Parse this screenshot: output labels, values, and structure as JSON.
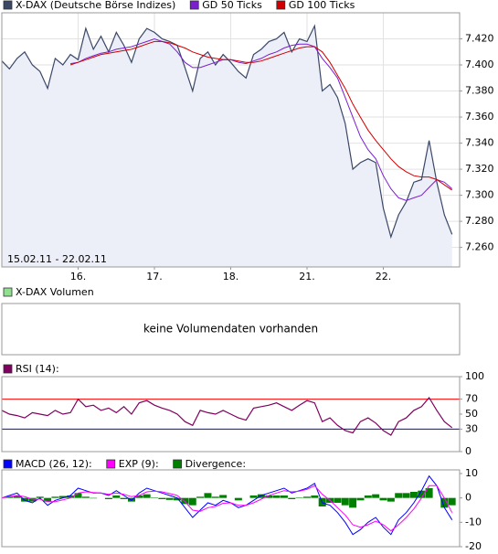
{
  "chart_data": [
    {
      "type": "line",
      "series": [
        {
          "name": "X-DAX (Deutsche Börse Indizes)",
          "color": "#3a4766",
          "fill": "#eceef8",
          "values": [
            7.403,
            7.397,
            7.405,
            7.41,
            7.4,
            7.395,
            7.382,
            7.405,
            7.4,
            7.408,
            7.404,
            7.428,
            7.412,
            7.422,
            7.41,
            7.425,
            7.415,
            7.402,
            7.42,
            7.428,
            7.425,
            7.42,
            7.418,
            7.415,
            7.398,
            7.38,
            7.405,
            7.41,
            7.4,
            7.408,
            7.402,
            7.395,
            7.39,
            7.408,
            7.412,
            7.418,
            7.42,
            7.425,
            7.41,
            7.42,
            7.418,
            7.43,
            7.38,
            7.385,
            7.375,
            7.355,
            7.32,
            7.325,
            7.328,
            7.325,
            7.29,
            7.268,
            7.285,
            7.295,
            7.31,
            7.312,
            7.342,
            7.31,
            7.285,
            7.27
          ]
        },
        {
          "name": "GD 50 Ticks",
          "color": "#7a1fd0",
          "values": [
            null,
            null,
            null,
            null,
            null,
            null,
            null,
            null,
            null,
            7.401,
            7.402,
            7.405,
            7.407,
            7.409,
            7.41,
            7.412,
            7.413,
            7.414,
            7.416,
            7.418,
            7.42,
            7.418,
            7.416,
            7.41,
            7.402,
            7.398,
            7.398,
            7.4,
            7.402,
            7.404,
            7.404,
            7.402,
            7.401,
            7.403,
            7.405,
            7.408,
            7.41,
            7.413,
            7.415,
            7.416,
            7.416,
            7.414,
            7.405,
            7.398,
            7.39,
            7.375,
            7.36,
            7.345,
            7.335,
            7.328,
            7.315,
            7.305,
            7.298,
            7.296,
            7.298,
            7.3,
            7.306,
            7.312,
            7.31,
            7.305
          ]
        },
        {
          "name": "GD 100 Ticks",
          "color": "#d00000",
          "values": [
            null,
            null,
            null,
            null,
            null,
            null,
            null,
            null,
            null,
            7.4,
            7.402,
            7.404,
            7.406,
            7.408,
            7.409,
            7.41,
            7.411,
            7.412,
            7.414,
            7.416,
            7.418,
            7.418,
            7.417,
            7.415,
            7.413,
            7.41,
            7.408,
            7.406,
            7.405,
            7.404,
            7.404,
            7.403,
            7.402,
            7.402,
            7.403,
            7.405,
            7.407,
            7.409,
            7.411,
            7.413,
            7.414,
            7.414,
            7.41,
            7.402,
            7.392,
            7.382,
            7.37,
            7.36,
            7.35,
            7.342,
            7.335,
            7.328,
            7.322,
            7.318,
            7.315,
            7.314,
            7.314,
            7.312,
            7.308,
            7.304
          ]
        }
      ],
      "x": [
        0,
        0.1,
        0.2,
        0.3,
        0.4,
        0.5,
        0.6,
        0.7,
        0.8,
        0.9,
        1,
        1.1,
        1.2,
        1.3,
        1.4,
        1.5,
        1.6,
        1.7,
        1.8,
        1.9,
        2,
        2.1,
        2.2,
        2.3,
        2.4,
        2.5,
        2.6,
        2.7,
        2.8,
        2.9,
        3,
        3.1,
        3.2,
        3.3,
        3.4,
        3.5,
        3.6,
        3.7,
        3.8,
        3.9,
        4,
        4.1,
        4.2,
        4.3,
        4.4,
        4.5,
        4.6,
        4.7,
        4.8,
        4.9,
        5,
        5.1,
        5.2,
        5.3,
        5.4,
        5.5,
        5.6,
        5.7,
        5.8,
        5.9
      ],
      "xlim": [
        0,
        6
      ],
      "xticks": [
        {
          "value": 1,
          "label": "16."
        },
        {
          "value": 2,
          "label": "17."
        },
        {
          "value": 3,
          "label": "18."
        },
        {
          "value": 4,
          "label": "21."
        },
        {
          "value": 5,
          "label": "22."
        }
      ],
      "ylim": [
        7.245,
        7.44
      ],
      "yticks": [
        {
          "value": 7.42,
          "label": "7.420"
        },
        {
          "value": 7.4,
          "label": "7.400"
        },
        {
          "value": 7.38,
          "label": "7.380"
        },
        {
          "value": 7.36,
          "label": "7.360"
        },
        {
          "value": 7.34,
          "label": "7.340"
        },
        {
          "value": 7.32,
          "label": "7.320"
        },
        {
          "value": 7.3,
          "label": "7.300"
        },
        {
          "value": 7.28,
          "label": "7.280"
        },
        {
          "value": 7.26,
          "label": "7.260"
        }
      ],
      "annotation": "15.02.11 - 22.02.11",
      "grid": true
    },
    {
      "type": "empty",
      "title": "X-DAX Volumen",
      "color": "#90e090",
      "message": "keine Volumendaten vorhanden"
    },
    {
      "type": "line",
      "series": [
        {
          "name": "RSI (14):",
          "color": "#800060",
          "values": [
            55,
            50,
            48,
            45,
            52,
            50,
            48,
            55,
            50,
            52,
            70,
            60,
            62,
            55,
            58,
            52,
            60,
            50,
            65,
            68,
            62,
            58,
            55,
            50,
            40,
            35,
            55,
            52,
            50,
            55,
            50,
            45,
            42,
            58,
            60,
            62,
            65,
            60,
            55,
            62,
            68,
            65,
            40,
            45,
            35,
            28,
            25,
            40,
            45,
            38,
            28,
            22,
            40,
            45,
            55,
            60,
            72,
            55,
            40,
            32
          ]
        }
      ],
      "ylim": [
        0,
        100
      ],
      "yticks": [
        100,
        70,
        50,
        30,
        0
      ],
      "upper_band": 70,
      "upper_color": "#ff0000",
      "lower_band": 30,
      "lower_color": "#0000ff"
    },
    {
      "type": "macd",
      "series": [
        {
          "name": "MACD (26, 12):",
          "color": "#0000ff",
          "style": "line",
          "values": [
            0,
            1,
            2,
            -1,
            -2,
            0,
            -3,
            -1,
            0,
            1,
            4,
            3,
            2,
            2,
            1,
            3,
            1,
            -1,
            2,
            4,
            3,
            2,
            1,
            0,
            -4,
            -8,
            -5,
            -2,
            -3,
            -1,
            -2,
            -4,
            -3,
            -1,
            1,
            2,
            3,
            4,
            2,
            3,
            4,
            6,
            -2,
            -3,
            -6,
            -10,
            -15,
            -13,
            -10,
            -8,
            -12,
            -15,
            -9,
            -6,
            -2,
            3,
            9,
            5,
            -4,
            -9
          ]
        },
        {
          "name": "EXP (9):",
          "color": "#ff00ff",
          "style": "line",
          "values": [
            0,
            0.5,
            1,
            0.5,
            -0.5,
            -0.5,
            -1.5,
            -1.5,
            -0.8,
            0,
            2,
            2.5,
            2.2,
            2,
            1.5,
            2,
            1.5,
            0.5,
            1,
            2.5,
            2.8,
            2.5,
            1.8,
            1,
            -1.5,
            -5,
            -5.5,
            -4,
            -3.5,
            -2.2,
            -2,
            -3,
            -3,
            -2,
            -0.5,
            1,
            2,
            3,
            2.5,
            2.8,
            3.5,
            5,
            1.5,
            -1,
            -4,
            -7,
            -11,
            -12,
            -11,
            -9.5,
            -11,
            -13.5,
            -11,
            -8,
            -4.5,
            0,
            5,
            5,
            0,
            -6
          ]
        },
        {
          "name": "Divergence:",
          "color": "#008000",
          "style": "bar",
          "values": [
            0,
            0.5,
            1,
            -1.5,
            -1.5,
            0.5,
            -1.5,
            0.5,
            0.8,
            1,
            2,
            0.5,
            -0.2,
            0,
            -0.5,
            1,
            -0.5,
            -1.5,
            1,
            1.5,
            0.2,
            -0.5,
            -0.8,
            -1,
            -2.5,
            -3,
            0.5,
            2,
            0.5,
            1.2,
            0,
            -1,
            0,
            1,
            1.5,
            1,
            1,
            1,
            -0.5,
            0.2,
            0.5,
            1,
            -3.5,
            -2,
            -2,
            -3,
            -4,
            -1,
            1,
            1.5,
            -1,
            -1.5,
            2,
            2,
            2.5,
            3,
            4,
            0,
            -4,
            -3
          ]
        }
      ],
      "ylim": [
        -20,
        11.5
      ],
      "yticks": [
        10,
        0,
        -10,
        -20
      ]
    }
  ]
}
